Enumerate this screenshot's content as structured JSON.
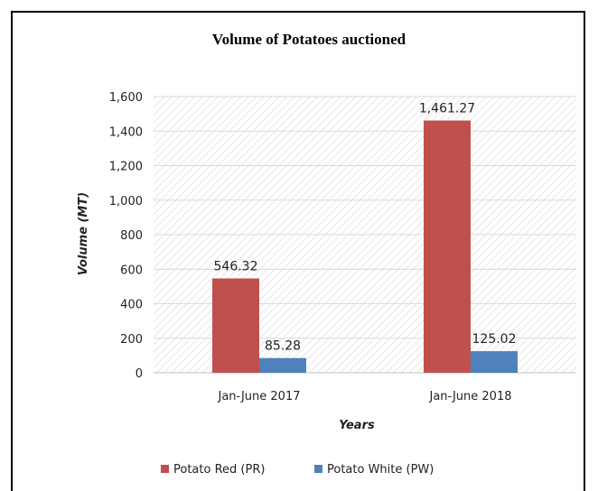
{
  "chart_data": {
    "type": "bar",
    "title": "Volume of Potatoes auctioned",
    "xlabel": "Years",
    "ylabel": "Volume (MT)",
    "categories": [
      "Jan-June 2017",
      "Jan-June 2018"
    ],
    "series": [
      {
        "name": "Potato Red (PR)",
        "values": [
          546.32,
          1461.27
        ],
        "labels": [
          "546.32",
          "1,461.27"
        ],
        "color": "#c0504d"
      },
      {
        "name": "Potato White (PW)",
        "values": [
          85.28,
          125.02
        ],
        "labels": [
          "85.28",
          "125.02"
        ],
        "color": "#4f81bd"
      }
    ],
    "ylim": [
      0,
      1600
    ],
    "yticks": [
      0,
      200,
      400,
      600,
      800,
      1000,
      1200,
      1400,
      1600
    ],
    "ytick_labels": [
      "0",
      "200",
      "400",
      "600",
      "800",
      "1,000",
      "1,200",
      "1,400",
      "1,600"
    ],
    "grid": true,
    "legend_position": "bottom"
  }
}
